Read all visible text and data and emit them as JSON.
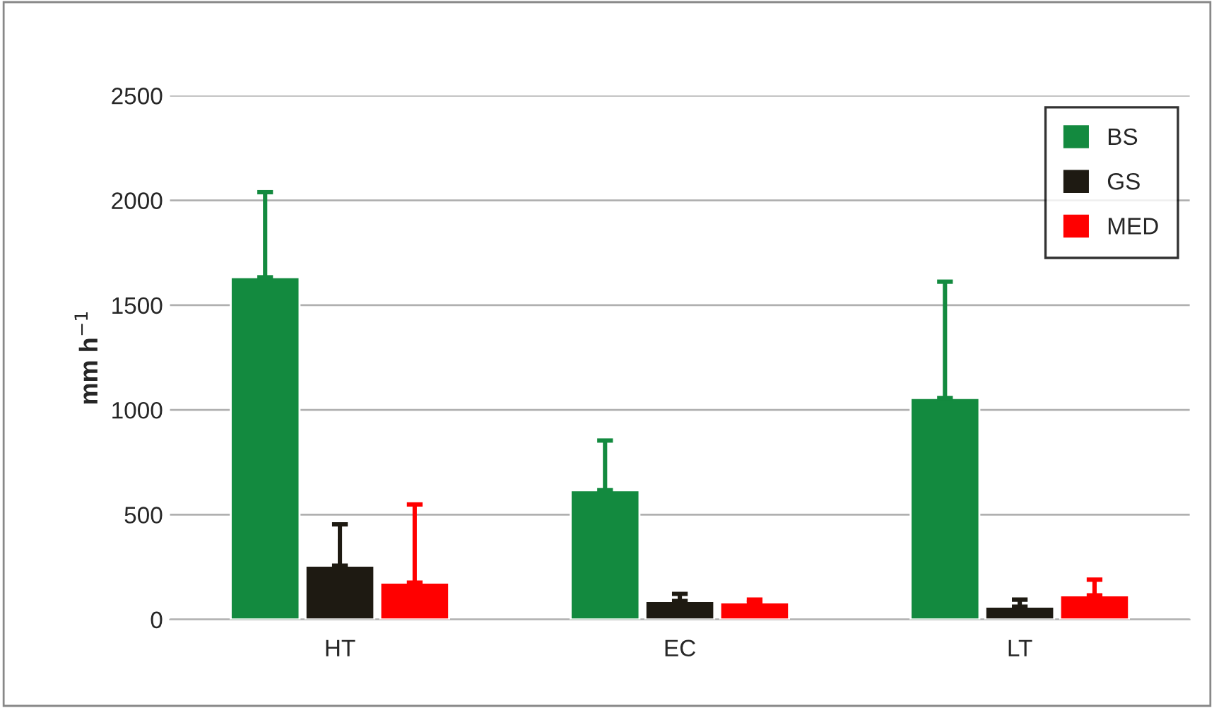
{
  "chart_data": {
    "type": "bar",
    "categories": [
      "HT",
      "EC",
      "LT"
    ],
    "ylabel": "mm h$^{−1}$",
    "series": [
      {
        "name": "BS",
        "color": "#138a3f",
        "values": [
          1633,
          617,
          1057
        ],
        "errors": [
          [
            1633,
            2039
          ],
          [
            617,
            854
          ],
          [
            1057,
            1612
          ]
        ]
      },
      {
        "name": "GS",
        "color": "#1e1a12",
        "values": [
          257,
          88,
          61
        ],
        "errors": [
          [
            257,
            454
          ],
          [
            88,
            122
          ],
          [
            61,
            95
          ]
        ]
      },
      {
        "name": "MED",
        "color": "#ff0000",
        "values": [
          176,
          81,
          115
        ],
        "errors": [
          [
            176,
            549
          ],
          [
            81,
            95
          ],
          [
            115,
            190
          ]
        ]
      }
    ],
    "ylim": [
      0,
      2500
    ],
    "yticks": [
      0,
      500,
      1000,
      1500,
      2000,
      2500
    ],
    "grid": "y",
    "legend": "top right"
  }
}
